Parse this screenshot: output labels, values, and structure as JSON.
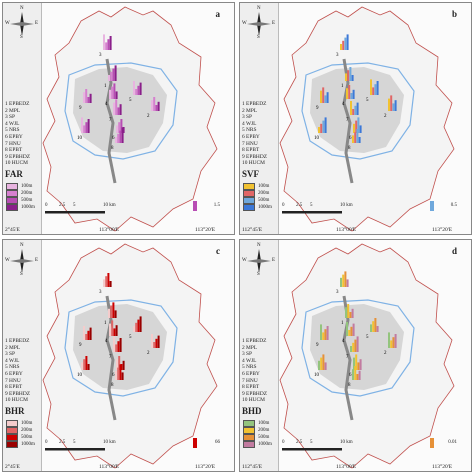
{
  "panels": [
    {
      "id": "a",
      "letter": "a",
      "variable": "FAR",
      "swatch_colors": [
        "#e8b4e0",
        "#d680cf",
        "#b84db4",
        "#8a1f8a"
      ],
      "key_value": "1.5",
      "top_axis_label": ""
    },
    {
      "id": "b",
      "letter": "b",
      "variable": "SVF",
      "swatch_colors": [
        "#f1c232",
        "#e06666",
        "#6fa8dc",
        "#3c78d8"
      ],
      "key_value": "0.5",
      "top_axis_label": ""
    },
    {
      "id": "c",
      "letter": "c",
      "variable": "BHR",
      "swatch_colors": [
        "#f4cccc",
        "#e06666",
        "#cc0000",
        "#990000"
      ],
      "key_value": "66",
      "top_axis_label": ""
    },
    {
      "id": "d",
      "letter": "d",
      "variable": "BHD",
      "swatch_colors": [
        "#93c47d",
        "#f1c232",
        "#e69138",
        "#c27ba0"
      ],
      "key_value": "0.01",
      "top_axis_label": ""
    }
  ],
  "site_list": [
    "1 EPBEDZ",
    "2 MPL",
    "3 SP",
    "4 WJL",
    "5 NRS",
    "6 EPBY",
    "7 HNU",
    "8 EPBT",
    "9 EPBHDZ",
    "10 HUCM"
  ],
  "buffers": [
    "100m",
    "200m",
    "500m",
    "1000m"
  ],
  "scale": {
    "ticks": [
      "0",
      "2.5",
      "5",
      "10 km"
    ]
  },
  "axis": {
    "lon_left": "2°45'E",
    "lon_mid": "113°00'E",
    "lon_right": "113°20'E",
    "lon_left_full": "112°45'E",
    "lat": "28°N"
  },
  "compass": {
    "n": "N",
    "s": "S",
    "e": "E",
    "w": "W"
  }
}
